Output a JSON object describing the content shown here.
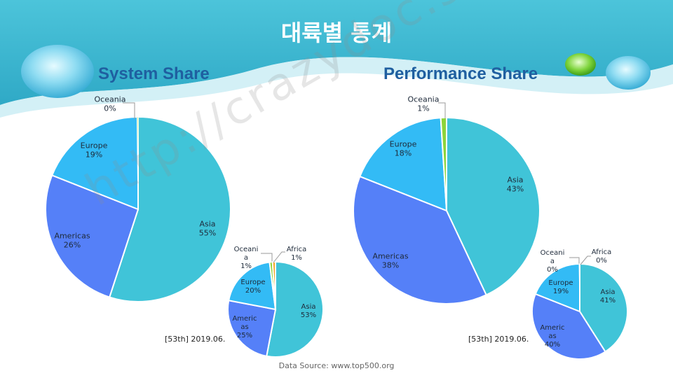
{
  "header": {
    "title": "대륙별 통계"
  },
  "colors": {
    "Asia": "#40c4d8",
    "Americas": "#5580f8",
    "Europe": "#33bbf5",
    "Oceania": "#8ed43a",
    "Africa": "#f5a623",
    "banner": "#3cb6cf",
    "title_blue": "#1f5fa0"
  },
  "left_panel": {
    "title": "System Share",
    "note": "[53th]  2019.06."
  },
  "right_panel": {
    "title": "Performance Share",
    "note": "[53th]  2019.06."
  },
  "footer": {
    "source": "Data Source: www.top500.org"
  },
  "watermark": "http://crazydoc.story.com",
  "chart_data": [
    {
      "type": "pie",
      "title": "System Share",
      "categories": [
        "Asia",
        "Americas",
        "Europe",
        "Oceania"
      ],
      "values": [
        55,
        26,
        19,
        0
      ],
      "labels": [
        [
          "Asia",
          "55%"
        ],
        [
          "Americas",
          "26%"
        ],
        [
          "Europe",
          "19%"
        ],
        [
          "Oceania",
          "0%"
        ]
      ]
    },
    {
      "type": "pie",
      "title": "",
      "categories": [
        "Asia",
        "Americas",
        "Europe",
        "Oceania",
        "Africa"
      ],
      "values": [
        53,
        25,
        20,
        1,
        1
      ],
      "labels": [
        [
          "Asia",
          "53%"
        ],
        [
          "Americ",
          "as",
          "25%"
        ],
        [
          "Europe",
          "20%"
        ],
        [
          "Oceani",
          "a",
          "1%"
        ],
        [
          "Africa",
          "1%"
        ]
      ]
    },
    {
      "type": "pie",
      "title": "Performance Share",
      "categories": [
        "Asia",
        "Americas",
        "Europe",
        "Oceania"
      ],
      "values": [
        43,
        38,
        18,
        1
      ],
      "labels": [
        [
          "Asia",
          "43%"
        ],
        [
          "Americas",
          "38%"
        ],
        [
          "Europe",
          "18%"
        ],
        [
          "Oceania",
          "1%"
        ]
      ]
    },
    {
      "type": "pie",
      "title": "",
      "categories": [
        "Asia",
        "Americas",
        "Europe",
        "Oceania",
        "Africa"
      ],
      "values": [
        41,
        40,
        19,
        0,
        0
      ],
      "labels": [
        [
          "Asia",
          "41%"
        ],
        [
          "Americ",
          "as",
          "40%"
        ],
        [
          "Europe",
          "19%"
        ],
        [
          "Oceani",
          "a",
          "0%"
        ],
        [
          "Africa",
          "0%"
        ]
      ]
    }
  ]
}
